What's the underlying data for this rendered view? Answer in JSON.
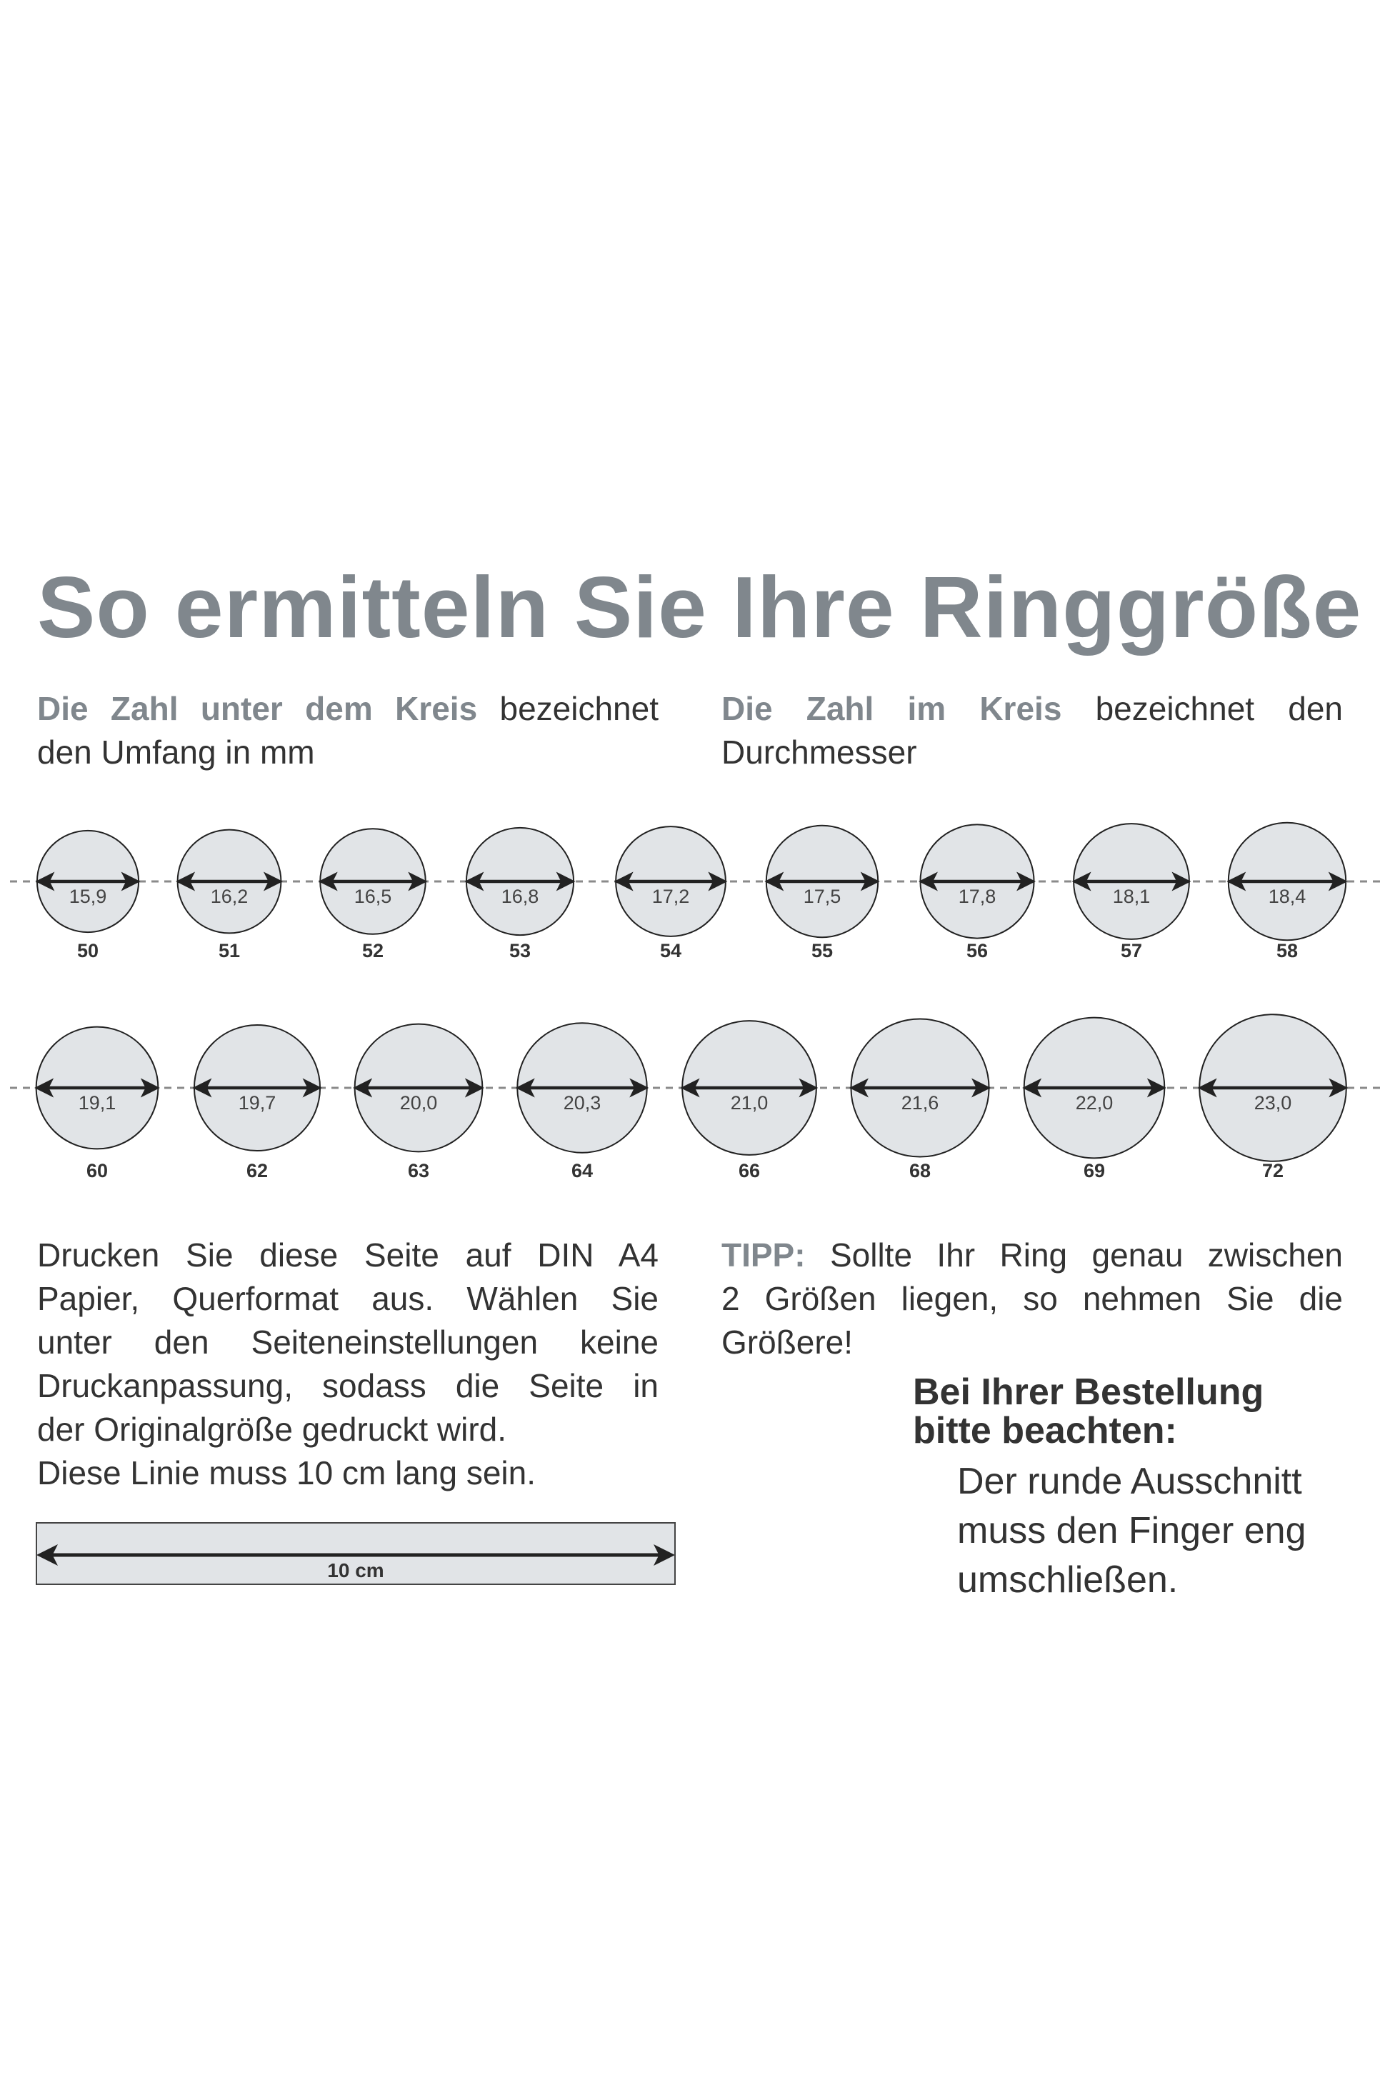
{
  "title": "So ermitteln Sie Ihre Ringgröße",
  "intro_left": {
    "highlight": "Die Zahl unter dem Kreis",
    "line1_rest": " bezeichnet",
    "line2": "den Umfang in mm"
  },
  "intro_right": {
    "highlight": "Die Zahl im Kreis",
    "line1_rest": " bezeichnet den",
    "line2": "Durchmesser"
  },
  "colors": {
    "accent_gray": "#80878d",
    "circle_fill": "#e1e4e7",
    "text": "#333333"
  },
  "rings": {
    "row1": [
      {
        "diameter": "15,9",
        "size": "50"
      },
      {
        "diameter": "16,2",
        "size": "51"
      },
      {
        "diameter": "16,5",
        "size": "52"
      },
      {
        "diameter": "16,8",
        "size": "53"
      },
      {
        "diameter": "17,2",
        "size": "54"
      },
      {
        "diameter": "17,5",
        "size": "55"
      },
      {
        "diameter": "17,8",
        "size": "56"
      },
      {
        "diameter": "18,1",
        "size": "57"
      },
      {
        "diameter": "18,4",
        "size": "58"
      }
    ],
    "row2": [
      {
        "diameter": "19,1",
        "size": "60"
      },
      {
        "diameter": "19,7",
        "size": "62"
      },
      {
        "diameter": "20,0",
        "size": "63"
      },
      {
        "diameter": "20,3",
        "size": "64"
      },
      {
        "diameter": "21,0",
        "size": "66"
      },
      {
        "diameter": "21,6",
        "size": "68"
      },
      {
        "diameter": "22,0",
        "size": "69"
      },
      {
        "diameter": "23,0",
        "size": "72"
      }
    ]
  },
  "print_instructions": {
    "lines": [
      "Drucken Sie diese Seite auf DIN A4",
      "Papier, Querformat aus. Wählen Sie",
      "unter den Seiteneinstellungen keine",
      "Druckanpassung, sodass die Seite in",
      "der Originalgröße gedruckt wird.",
      "Diese Linie muss 10 cm lang sein."
    ]
  },
  "tip": {
    "label": "TIPP:",
    "line1_rest": " Sollte Ihr Ring genau zwischen",
    "line2": "2 Größen liegen, so nehmen Sie die",
    "line3": "Größere!"
  },
  "order_note": {
    "heading_lines": [
      "Bei Ihrer Bestellung",
      "bitte beachten:"
    ],
    "text_lines": [
      "Der runde Ausschnitt",
      "muss den Finger eng",
      "umschließen."
    ]
  },
  "ruler": {
    "label": "10 cm"
  }
}
